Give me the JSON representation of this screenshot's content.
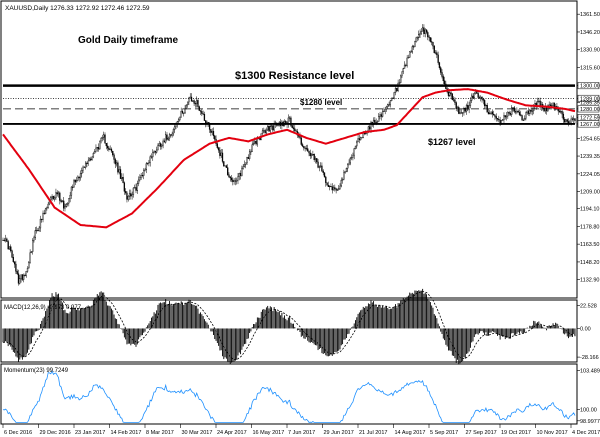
{
  "chart_data": {
    "type": "candlestick",
    "header": "XAUUSD,Daily  1276.33 1272.92 1272.46 1272.59",
    "title": "Gold Daily timeframe",
    "annotations": {
      "resistance": "$1300 Resistance level",
      "mid": "$1280 level",
      "support": "$1267 level"
    },
    "levels": {
      "resistance": 1300,
      "dotted_upper": 1289,
      "mid": 1280,
      "support": 1267
    },
    "price_panel": {
      "ylim": [
        1118,
        1372
      ],
      "y_ticks": [
        "1361.50",
        "1346.20",
        "1330.90",
        "1315.60",
        "1300.00",
        "1289.00",
        "1285.35",
        "1280.00",
        "1272.59",
        "1267.00",
        "1254.65",
        "1239.35",
        "1224.05",
        "1209.00",
        "1194.10",
        "1178.80",
        "1163.50",
        "1148.20",
        "1132.90"
      ],
      "y_tick_values": [
        1361.5,
        1346.2,
        1330.9,
        1315.6,
        1300.0,
        1289.0,
        1285.35,
        1280.0,
        1272.59,
        1267.0,
        1254.65,
        1239.35,
        1224.05,
        1209.0,
        1194.1,
        1178.8,
        1163.5,
        1148.2,
        1132.9
      ],
      "highlighted_ticks": [
        "1300.00",
        "1289.00",
        "1280.00",
        "1272.59",
        "1267.00"
      ]
    },
    "close_anchors": [
      [
        0,
        1170
      ],
      [
        5,
        1160
      ],
      [
        12,
        1132
      ],
      [
        18,
        1140
      ],
      [
        24,
        1170
      ],
      [
        30,
        1185
      ],
      [
        36,
        1200
      ],
      [
        42,
        1208
      ],
      [
        48,
        1195
      ],
      [
        54,
        1215
      ],
      [
        60,
        1225
      ],
      [
        66,
        1235
      ],
      [
        72,
        1245
      ],
      [
        78,
        1255
      ],
      [
        84,
        1242
      ],
      [
        90,
        1225
      ],
      [
        96,
        1205
      ],
      [
        102,
        1210
      ],
      [
        108,
        1225
      ],
      [
        114,
        1238
      ],
      [
        120,
        1248
      ],
      [
        126,
        1255
      ],
      [
        132,
        1262
      ],
      [
        138,
        1275
      ],
      [
        144,
        1288
      ],
      [
        150,
        1285
      ],
      [
        156,
        1272
      ],
      [
        162,
        1260
      ],
      [
        168,
        1242
      ],
      [
        174,
        1225
      ],
      [
        180,
        1215
      ],
      [
        186,
        1230
      ],
      [
        192,
        1245
      ],
      [
        198,
        1255
      ],
      [
        204,
        1262
      ],
      [
        210,
        1265
      ],
      [
        216,
        1268
      ],
      [
        222,
        1270
      ],
      [
        228,
        1258
      ],
      [
        234,
        1245
      ],
      [
        240,
        1238
      ],
      [
        246,
        1228
      ],
      [
        252,
        1215
      ],
      [
        258,
        1210
      ],
      [
        264,
        1222
      ],
      [
        270,
        1240
      ],
      [
        276,
        1255
      ],
      [
        282,
        1262
      ],
      [
        288,
        1270
      ],
      [
        294,
        1275
      ],
      [
        300,
        1285
      ],
      [
        306,
        1300
      ],
      [
        312,
        1318
      ],
      [
        318,
        1335
      ],
      [
        324,
        1348
      ],
      [
        330,
        1342
      ],
      [
        336,
        1325
      ],
      [
        342,
        1300
      ],
      [
        348,
        1288
      ],
      [
        354,
        1275
      ],
      [
        360,
        1282
      ],
      [
        366,
        1295
      ],
      [
        372,
        1285
      ],
      [
        378,
        1275
      ],
      [
        384,
        1268
      ],
      [
        390,
        1275
      ],
      [
        396,
        1280
      ],
      [
        402,
        1272
      ],
      [
        408,
        1278
      ],
      [
        414,
        1285
      ],
      [
        420,
        1280
      ],
      [
        426,
        1283
      ],
      [
        432,
        1275
      ],
      [
        438,
        1268
      ],
      [
        443,
        1272
      ]
    ],
    "ma_anchors": [
      [
        0,
        1258
      ],
      [
        20,
        1228
      ],
      [
        40,
        1195
      ],
      [
        60,
        1180
      ],
      [
        80,
        1178
      ],
      [
        100,
        1190
      ],
      [
        120,
        1212
      ],
      [
        140,
        1236
      ],
      [
        160,
        1250
      ],
      [
        175,
        1255
      ],
      [
        190,
        1252
      ],
      [
        205,
        1258
      ],
      [
        220,
        1262
      ],
      [
        235,
        1255
      ],
      [
        250,
        1250
      ],
      [
        265,
        1255
      ],
      [
        280,
        1260
      ],
      [
        295,
        1262
      ],
      [
        305,
        1266
      ],
      [
        315,
        1278
      ],
      [
        325,
        1290
      ],
      [
        335,
        1294
      ],
      [
        345,
        1296
      ],
      [
        360,
        1297
      ],
      [
        375,
        1294
      ],
      [
        390,
        1288
      ],
      [
        405,
        1283
      ],
      [
        420,
        1282
      ],
      [
        435,
        1280
      ],
      [
        443,
        1278
      ]
    ],
    "macd_panel": {
      "label": "MACD(12,26,9) -0.973 0.977",
      "ylim": [
        -32,
        27
      ],
      "y_ticks": [
        "22.528",
        "0.00",
        "-28.166"
      ],
      "y_tick_values": [
        22.528,
        0,
        -28.166
      ]
    },
    "momentum_panel": {
      "label": "Momentum(23) 99.7249",
      "ylim": [
        98.8,
        104.0
      ],
      "y_ticks": [
        "103.4897",
        "100.00",
        "98.9977"
      ],
      "y_tick_values": [
        103.4897,
        100.0,
        98.9977
      ]
    },
    "x_ticks": [
      "6 Dec 2016",
      "29 Dec 2016",
      "23 Jan 2017",
      "14 Feb 2017",
      "8 Mar 2017",
      "30 Mar 2017",
      "24 Apr 2017",
      "16 May 2017",
      "7 Jun 2017",
      "29 Jun 2017",
      "21 Jul 2017",
      "14 Aug 2017",
      "5 Sep 2017",
      "27 Sep 2017",
      "19 Oct 2017",
      "10 Nov 2017",
      "4 Dec 2017"
    ],
    "colors": {
      "ma": "#e3000f",
      "macd_signal": "#000000",
      "momentum": "#1e90ff",
      "candle": "#000000",
      "level_line": "#000000"
    },
    "grid": false
  }
}
